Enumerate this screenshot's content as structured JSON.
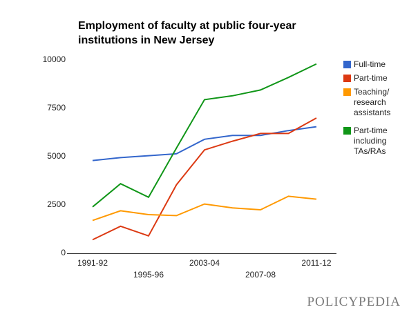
{
  "chart_data": {
    "type": "line",
    "title": "Employment of faculty at public four-year institutions in New Jersey",
    "categories": [
      "1991-92",
      null,
      "1995-96",
      null,
      "2003-04",
      null,
      "2007-08",
      null,
      "2011-12"
    ],
    "series": [
      {
        "name": "Full-time",
        "color": "#3366cc",
        "values": [
          4800,
          4950,
          5050,
          5150,
          5900,
          6100,
          6100,
          6350,
          6550
        ]
      },
      {
        "name": "Part-time",
        "color": "#dc3912",
        "values": [
          700,
          1400,
          900,
          3550,
          5350,
          5800,
          6200,
          6200,
          7000
        ]
      },
      {
        "name": "Teaching/ research assistants",
        "color": "#ff9900",
        "values": [
          1700,
          2200,
          2000,
          1950,
          2550,
          2350,
          2250,
          2950,
          2800
        ]
      },
      {
        "name": "Part-time including TAs/RAs",
        "color": "#109618",
        "values": [
          2400,
          3600,
          2900,
          5450,
          7950,
          8150,
          8450,
          9100,
          9800
        ]
      }
    ],
    "ylim": [
      0,
      10000
    ],
    "yticks": [
      0,
      2500,
      5000,
      7500,
      10000
    ],
    "grid": false
  },
  "logo": "POLICYPEDIA"
}
